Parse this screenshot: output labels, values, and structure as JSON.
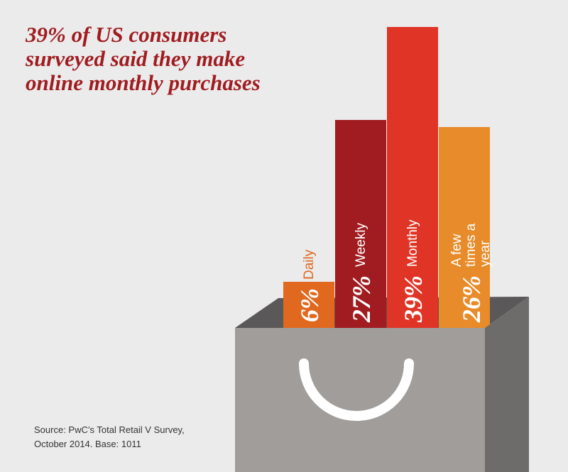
{
  "chart_data": {
    "type": "bar",
    "title": "39% of US consumers surveyed said they make online monthly purchases",
    "categories": [
      "Daily",
      "Weekly",
      "Monthly",
      "A few times a year"
    ],
    "values": [
      6,
      27,
      39,
      26
    ],
    "value_labels": [
      "6%",
      "27%",
      "39%",
      "26%"
    ],
    "colors": [
      "#e0681f",
      "#a01c20",
      "#e03426",
      "#e88b2a"
    ],
    "source": [
      "Source: PwC’s Total Retail V Survey,",
      "October 2014. Base: 1011"
    ]
  }
}
